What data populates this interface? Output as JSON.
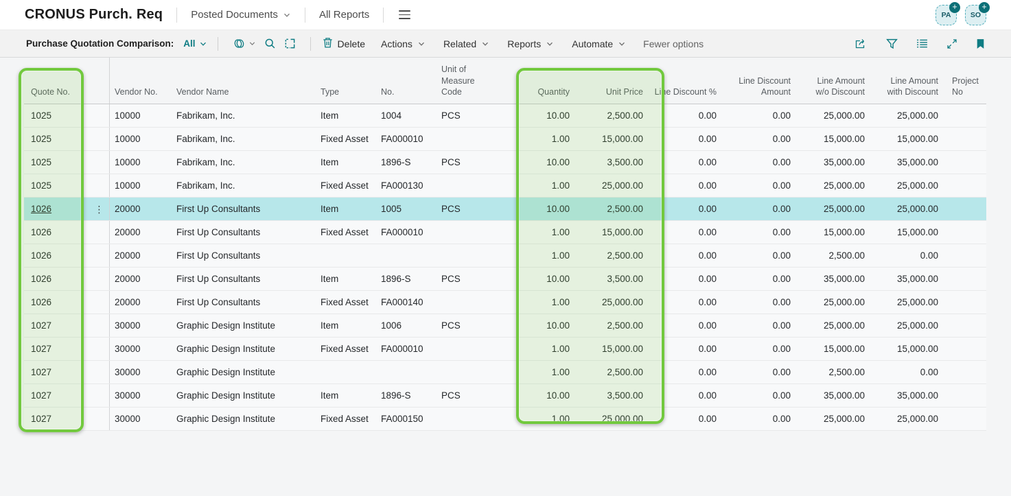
{
  "colors": {
    "accent_teal": "#0e7c83",
    "selected_row_cyan": "#b7e7ea",
    "highlight_green": "#72c93f",
    "toolbar_bg": "#f2f2f2"
  },
  "top_nav": {
    "title": "CRONUS Purch. Req",
    "items": [
      {
        "label": "Posted Documents"
      },
      {
        "label": "All Reports"
      }
    ],
    "badges": [
      {
        "label": "PA"
      },
      {
        "label": "SO"
      }
    ]
  },
  "toolbar": {
    "caption": "Purchase Quotation Comparison:",
    "view_filter": "All",
    "delete_label": "Delete",
    "menus": [
      "Actions",
      "Related",
      "Reports",
      "Automate"
    ],
    "fewer_options": "Fewer options",
    "icons_left": [
      "views-icon",
      "search-icon",
      "analyze-icon"
    ],
    "icons_right": [
      "share-icon",
      "filter-icon",
      "list-icon",
      "expand-icon",
      "bookmark-icon"
    ]
  },
  "table": {
    "columns": [
      "Quote No.",
      "Vendor No.",
      "Vendor Name",
      "Type",
      "No.",
      "Unit of\nMeasure\nCode",
      "Quantity",
      "Unit Price",
      "Line Discount %",
      "Line Discount\nAmount",
      "Line Amount\nw/o Discount",
      "Line Amount\nwith Discount",
      "Project No"
    ],
    "selected_row_index": 4,
    "rows": [
      [
        "1025",
        "10000",
        "Fabrikam, Inc.",
        "Item",
        "1004",
        "PCS",
        "10.00",
        "2,500.00",
        "0.00",
        "0.00",
        "25,000.00",
        "25,000.00",
        ""
      ],
      [
        "1025",
        "10000",
        "Fabrikam, Inc.",
        "Fixed Asset",
        "FA000010",
        "",
        "1.00",
        "15,000.00",
        "0.00",
        "0.00",
        "15,000.00",
        "15,000.00",
        ""
      ],
      [
        "1025",
        "10000",
        "Fabrikam, Inc.",
        "Item",
        "1896-S",
        "PCS",
        "10.00",
        "3,500.00",
        "0.00",
        "0.00",
        "35,000.00",
        "35,000.00",
        ""
      ],
      [
        "1025",
        "10000",
        "Fabrikam, Inc.",
        "Fixed Asset",
        "FA000130",
        "",
        "1.00",
        "25,000.00",
        "0.00",
        "0.00",
        "25,000.00",
        "25,000.00",
        ""
      ],
      [
        "1026",
        "20000",
        "First Up Consultants",
        "Item",
        "1005",
        "PCS",
        "10.00",
        "2,500.00",
        "0.00",
        "0.00",
        "25,000.00",
        "25,000.00",
        ""
      ],
      [
        "1026",
        "20000",
        "First Up Consultants",
        "Fixed Asset",
        "FA000010",
        "",
        "1.00",
        "15,000.00",
        "0.00",
        "0.00",
        "15,000.00",
        "15,000.00",
        ""
      ],
      [
        "1026",
        "20000",
        "First Up Consultants",
        "",
        "",
        "",
        "1.00",
        "2,500.00",
        "0.00",
        "0.00",
        "2,500.00",
        "0.00",
        ""
      ],
      [
        "1026",
        "20000",
        "First Up Consultants",
        "Item",
        "1896-S",
        "PCS",
        "10.00",
        "3,500.00",
        "0.00",
        "0.00",
        "35,000.00",
        "35,000.00",
        ""
      ],
      [
        "1026",
        "20000",
        "First Up Consultants",
        "Fixed Asset",
        "FA000140",
        "",
        "1.00",
        "25,000.00",
        "0.00",
        "0.00",
        "25,000.00",
        "25,000.00",
        ""
      ],
      [
        "1027",
        "30000",
        "Graphic Design Institute",
        "Item",
        "1006",
        "PCS",
        "10.00",
        "2,500.00",
        "0.00",
        "0.00",
        "25,000.00",
        "25,000.00",
        ""
      ],
      [
        "1027",
        "30000",
        "Graphic Design Institute",
        "Fixed Asset",
        "FA000010",
        "",
        "1.00",
        "15,000.00",
        "0.00",
        "0.00",
        "15,000.00",
        "15,000.00",
        ""
      ],
      [
        "1027",
        "30000",
        "Graphic Design Institute",
        "",
        "",
        "",
        "1.00",
        "2,500.00",
        "0.00",
        "0.00",
        "2,500.00",
        "0.00",
        ""
      ],
      [
        "1027",
        "30000",
        "Graphic Design Institute",
        "Item",
        "1896-S",
        "PCS",
        "10.00",
        "3,500.00",
        "0.00",
        "0.00",
        "35,000.00",
        "35,000.00",
        ""
      ],
      [
        "1027",
        "30000",
        "Graphic Design Institute",
        "Fixed Asset",
        "FA000150",
        "",
        "1.00",
        "25,000.00",
        "0.00",
        "0.00",
        "25,000.00",
        "25,000.00",
        ""
      ]
    ]
  }
}
